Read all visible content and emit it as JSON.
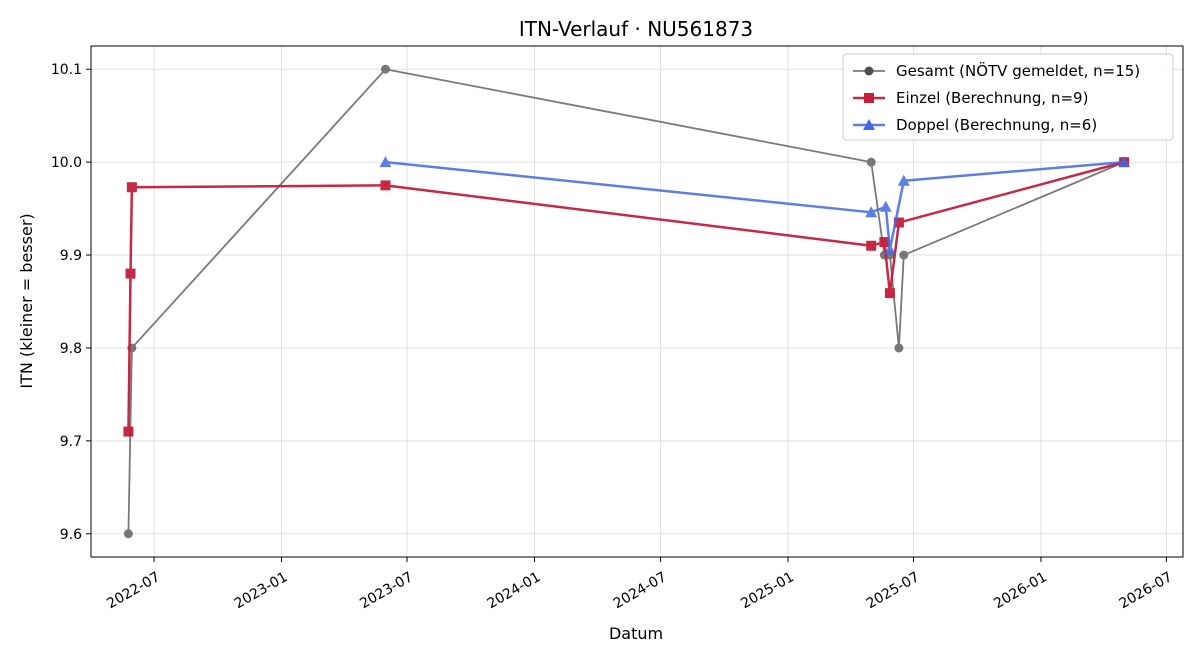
{
  "chart_data": {
    "type": "line",
    "title": "ITN-Verlauf · NU561873",
    "xlabel": "Datum",
    "ylabel": "ITN  (kleiner = besser)",
    "xlim": [
      "2022-04-01",
      "2026-07-25"
    ],
    "ylim": [
      9.575,
      10.125
    ],
    "x_ticks": [
      "2022-07",
      "2023-01",
      "2023-07",
      "2024-01",
      "2024-07",
      "2025-01",
      "2025-07",
      "2026-01",
      "2026-07"
    ],
    "y_ticks": [
      "9.6",
      "9.7",
      "9.8",
      "9.9",
      "10.0",
      "10.1"
    ],
    "grid": true,
    "legend_position": "top-right",
    "series": [
      {
        "name": "Gesamt (NÖTV gemeldet, n=15)",
        "color": "#4d4d4d",
        "marker": "circle",
        "points": [
          {
            "x": "2022-05-25",
            "y": 9.6
          },
          {
            "x": "2022-05-30",
            "y": 9.8
          },
          {
            "x": "2023-05-31",
            "y": 10.1
          },
          {
            "x": "2025-05-01",
            "y": 10.0
          },
          {
            "x": "2025-05-20",
            "y": 9.9
          },
          {
            "x": "2025-05-28",
            "y": 9.9
          },
          {
            "x": "2025-06-10",
            "y": 9.8
          },
          {
            "x": "2025-06-17",
            "y": 9.9
          },
          {
            "x": "2026-05-01",
            "y": 10.0
          }
        ]
      },
      {
        "name": "Einzel (Berechnung, n=9)",
        "color": "#c41e3a",
        "marker": "square",
        "points": [
          {
            "x": "2022-05-25",
            "y": 9.71
          },
          {
            "x": "2022-05-28",
            "y": 9.88
          },
          {
            "x": "2022-05-30",
            "y": 9.973
          },
          {
            "x": "2023-05-31",
            "y": 9.975
          },
          {
            "x": "2025-05-01",
            "y": 9.91
          },
          {
            "x": "2025-05-20",
            "y": 9.914
          },
          {
            "x": "2025-05-28",
            "y": 9.859
          },
          {
            "x": "2025-06-10",
            "y": 9.935
          },
          {
            "x": "2026-05-01",
            "y": 10.0
          }
        ]
      },
      {
        "name": "Doppel (Berechnung, n=6)",
        "color": "#4169e1",
        "marker": "triangle",
        "points": [
          {
            "x": "2023-05-31",
            "y": 10.0
          },
          {
            "x": "2025-05-01",
            "y": 9.946
          },
          {
            "x": "2025-05-22",
            "y": 9.952
          },
          {
            "x": "2025-05-28",
            "y": 9.906
          },
          {
            "x": "2025-06-17",
            "y": 9.98
          },
          {
            "x": "2026-05-01",
            "y": 10.0
          }
        ]
      }
    ]
  }
}
